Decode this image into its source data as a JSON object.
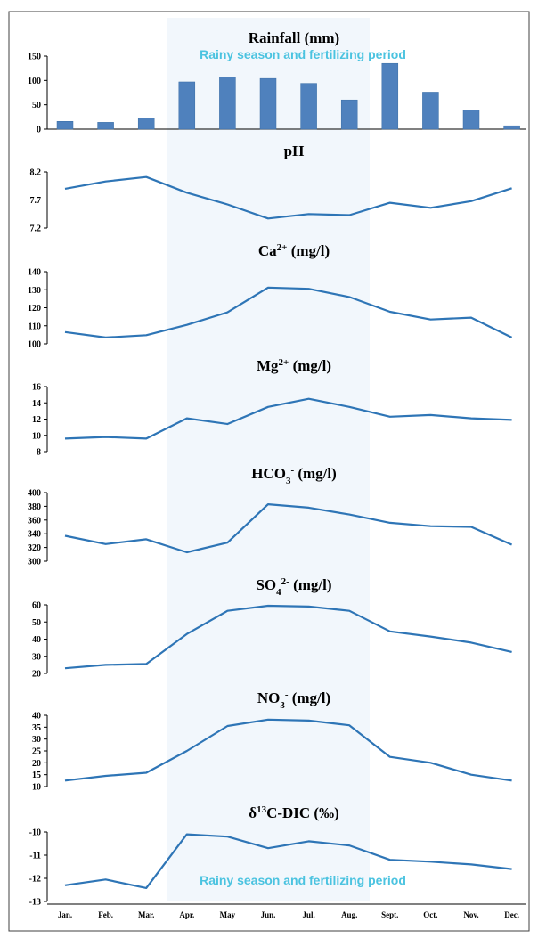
{
  "figure": {
    "season_label_top": "Rainy season and fertilizing period",
    "season_label_bottom": "Rainy season and fertilizing period",
    "season_months": [
      "Apr.",
      "Aug."
    ],
    "colors": {
      "series": "#2E75B6",
      "bar": "#4F81BD",
      "season_label": "#4BC3E0",
      "season_band": "#F2F7FC",
      "axis": "#000000",
      "frame": "#404040"
    }
  },
  "months": [
    "Jan.",
    "Feb.",
    "Mar.",
    "Apr.",
    "May",
    "Jun.",
    "Jul.",
    "Aug.",
    "Sept.",
    "Oct.",
    "Nov.",
    "Dec."
  ],
  "chart_data": [
    {
      "type": "bar",
      "title": "Rainfall (mm)",
      "categories": [
        "Jan.",
        "Feb.",
        "Mar.",
        "Apr.",
        "May",
        "Jun.",
        "Jul.",
        "Aug.",
        "Sept.",
        "Oct.",
        "Nov.",
        "Dec."
      ],
      "values": [
        16,
        14,
        23,
        97,
        107,
        104,
        94,
        60,
        135,
        76,
        39,
        7
      ],
      "ylim": [
        0,
        150
      ],
      "yticks": [
        "0",
        "50",
        "100",
        "150"
      ]
    },
    {
      "type": "line",
      "title": "pH",
      "categories": [
        "Jan.",
        "Feb.",
        "Mar.",
        "Apr.",
        "May",
        "Jun.",
        "Jul.",
        "Aug.",
        "Sept.",
        "Oct.",
        "Nov.",
        "Dec."
      ],
      "values": [
        7.9,
        8.03,
        8.11,
        7.83,
        7.62,
        7.37,
        7.45,
        7.43,
        7.65,
        7.56,
        7.68,
        7.91
      ],
      "ylim": [
        7.2,
        8.2
      ],
      "yticks": [
        "7.2",
        "7.7",
        "8.2"
      ]
    },
    {
      "type": "line",
      "title_main": "Ca",
      "title_sup": "2+",
      "title_tail": " (mg/l)",
      "categories": [
        "Jan.",
        "Feb.",
        "Mar.",
        "Apr.",
        "May",
        "Jun.",
        "Jul.",
        "Aug.",
        "Sept.",
        "Oct.",
        "Nov.",
        "Dec."
      ],
      "values": [
        106.5,
        103.5,
        104.8,
        110.5,
        117.5,
        131.2,
        130.5,
        126,
        117.8,
        113.5,
        114.5,
        103.5
      ],
      "ylim": [
        100,
        140
      ],
      "yticks": [
        "100",
        "110",
        "120",
        "130",
        "140"
      ]
    },
    {
      "type": "line",
      "title_main": "Mg",
      "title_sup": "2+",
      "title_tail": " (mg/l)",
      "categories": [
        "Jan.",
        "Feb.",
        "Mar.",
        "Apr.",
        "May",
        "Jun.",
        "Jul.",
        "Aug.",
        "Sept.",
        "Oct.",
        "Nov.",
        "Dec."
      ],
      "values": [
        9.6,
        9.8,
        9.6,
        12.1,
        11.4,
        13.5,
        14.5,
        13.5,
        12.3,
        12.5,
        12.1,
        11.9
      ],
      "ylim": [
        8,
        16
      ],
      "yticks": [
        "8",
        "10",
        "12",
        "14",
        "16"
      ]
    },
    {
      "type": "line",
      "title_main": "HCO",
      "title_sub": "3",
      "title_sup": "-",
      "title_tail": " (mg/l)",
      "categories": [
        "Jan.",
        "Feb.",
        "Mar.",
        "Apr.",
        "May",
        "Jun.",
        "Jul.",
        "Aug.",
        "Sept.",
        "Oct.",
        "Nov.",
        "Dec."
      ],
      "values": [
        337,
        325,
        332,
        313,
        327,
        383,
        378,
        368,
        356,
        351,
        350,
        324
      ],
      "ylim": [
        300,
        400
      ],
      "yticks": [
        "300",
        "320",
        "340",
        "360",
        "380",
        "400"
      ]
    },
    {
      "type": "line",
      "title_main": "SO",
      "title_sub": "4",
      "title_sup": "2-",
      "title_tail": " (mg/l)",
      "categories": [
        "Jan.",
        "Feb.",
        "Mar.",
        "Apr.",
        "May",
        "Jun.",
        "Jul.",
        "Aug.",
        "Sept.",
        "Oct.",
        "Nov.",
        "Dec."
      ],
      "values": [
        23,
        25,
        25.5,
        43,
        56.5,
        59.5,
        59,
        56.5,
        44.5,
        41.5,
        38,
        32.5
      ],
      "ylim": [
        20,
        60
      ],
      "yticks": [
        "20",
        "30",
        "40",
        "50",
        "60"
      ]
    },
    {
      "type": "line",
      "title_main": "NO",
      "title_sub": "3",
      "title_sup": "-",
      "title_tail": " (mg/l)",
      "categories": [
        "Jan.",
        "Feb.",
        "Mar.",
        "Apr.",
        "May",
        "Jun.",
        "Jul.",
        "Aug.",
        "Sept.",
        "Oct.",
        "Nov.",
        "Dec."
      ],
      "values": [
        12.5,
        14.5,
        15.8,
        25,
        35.5,
        38.2,
        37.8,
        35.8,
        22.5,
        20,
        15,
        12.5
      ],
      "ylim": [
        10,
        40
      ],
      "yticks": [
        "10",
        "15",
        "20",
        "25",
        "30",
        "35",
        "40"
      ]
    },
    {
      "type": "line",
      "title_main": "δ",
      "title_sup": "13",
      "title_tail": "C-DIC (‰)",
      "categories": [
        "Jan.",
        "Feb.",
        "Mar.",
        "Apr.",
        "May",
        "Jun.",
        "Jul.",
        "Aug.",
        "Sept.",
        "Oct.",
        "Nov.",
        "Dec."
      ],
      "values": [
        -12.3,
        -12.05,
        -12.42,
        -10.1,
        -10.2,
        -10.7,
        -10.4,
        -10.58,
        -11.2,
        -11.28,
        -11.4,
        -11.6
      ],
      "ylim": [
        -13,
        -10
      ],
      "yticks": [
        "-13",
        "-12",
        "-11",
        "-10"
      ]
    }
  ]
}
